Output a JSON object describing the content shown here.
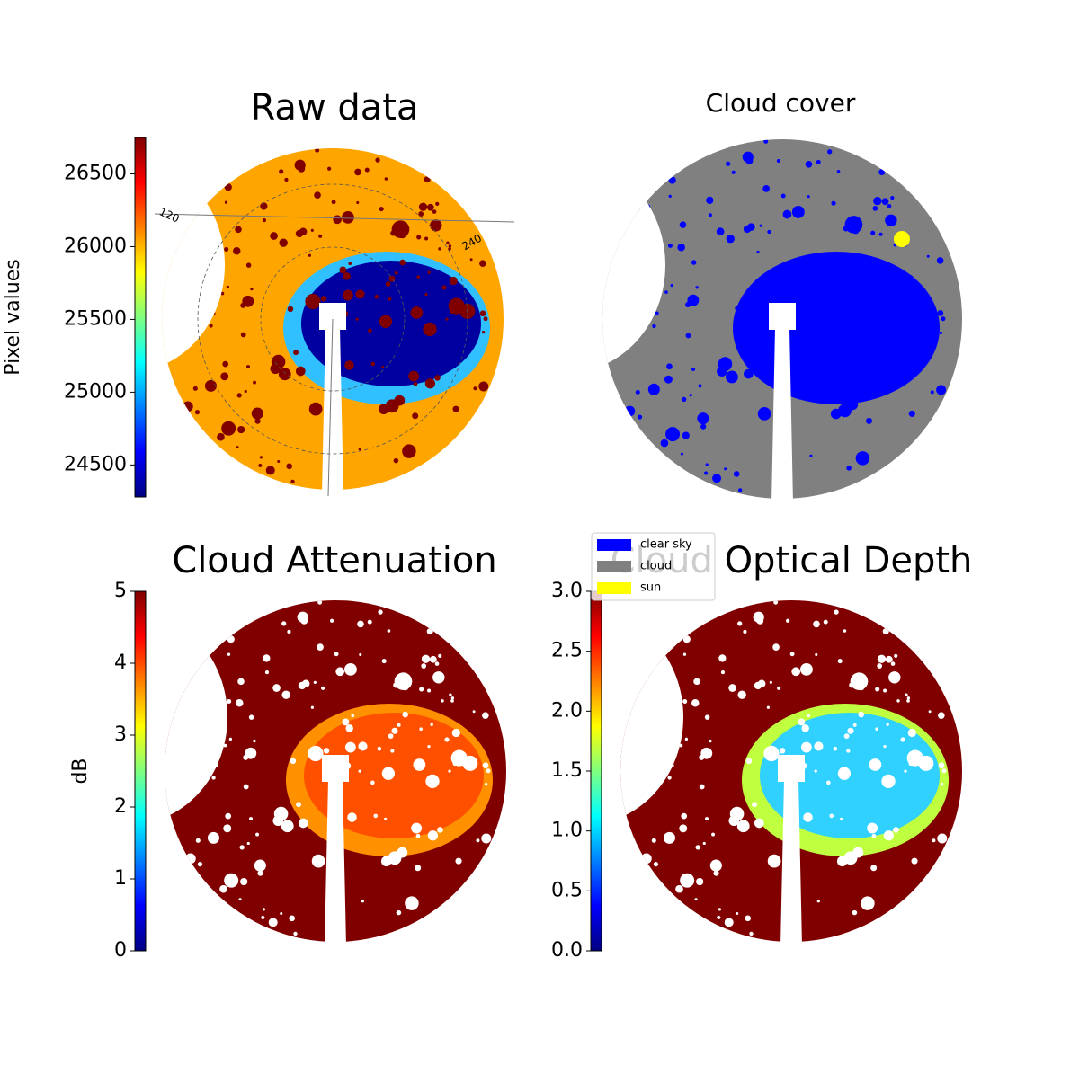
{
  "chart_data": [
    {
      "type": "heatmap",
      "title": "Raw data",
      "colormap": "jet",
      "colorbar_label": "Pixel values",
      "ylim": [
        24280,
        26750
      ],
      "yticks": [
        24500,
        25000,
        25500,
        26000,
        26500
      ],
      "annotations": [
        "120",
        "240"
      ]
    },
    {
      "type": "categorical-map",
      "title": "Cloud cover",
      "series": [
        {
          "name": "clear sky",
          "color": "#0000ff"
        },
        {
          "name": "cloud",
          "color": "#808080"
        },
        {
          "name": "sun",
          "color": "#ffff00"
        }
      ]
    },
    {
      "type": "heatmap",
      "title": "Cloud Attenuation",
      "colormap": "jet",
      "colorbar_label": "dB",
      "ylim": [
        0,
        5
      ],
      "yticks": [
        0,
        1,
        2,
        3,
        4,
        5
      ]
    },
    {
      "type": "heatmap",
      "title": "Cloud Optical Depth",
      "colormap": "jet",
      "ylim": [
        0,
        3
      ],
      "yticks": [
        {
          "value": 0,
          "label": "0.0"
        },
        {
          "value": 0.5,
          "label": "0.5"
        },
        {
          "value": 1,
          "label": "1.0"
        },
        {
          "value": 1.5,
          "label": "1.5"
        },
        {
          "value": 2,
          "label": "2.0"
        },
        {
          "value": 2.5,
          "label": "2.5"
        },
        {
          "value": 3,
          "label": "3.0"
        }
      ]
    }
  ]
}
